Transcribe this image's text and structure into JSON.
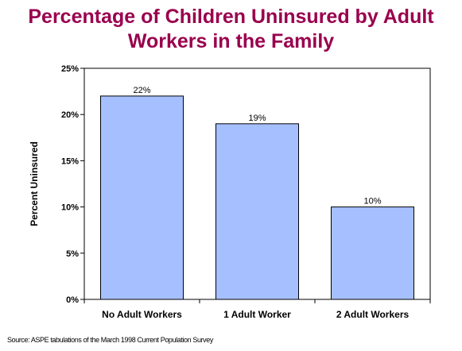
{
  "title_lines": [
    "Percentage of Children Uninsured by Adult",
    "Workers in the Family"
  ],
  "source": "Source: ASPE tabulations of the March 1998 Current Population Survey",
  "colors": {
    "title": "#99004d",
    "bar_fill": "#a6c0ff",
    "bar_stroke": "#000000"
  },
  "chart_data": {
    "type": "bar",
    "title": "Percentage of Children Uninsured by Adult Workers in the Family",
    "categories": [
      "No Adult Workers",
      "1 Adult Worker",
      "2 Adult Workers"
    ],
    "values": [
      22,
      19,
      10
    ],
    "data_labels": [
      "22%",
      "19%",
      "10%"
    ],
    "xlabel": "",
    "ylabel": "Percent Uninsured",
    "ylim": [
      0,
      25
    ],
    "yticks": [
      0,
      5,
      10,
      15,
      20,
      25
    ],
    "ytick_labels": [
      "0%",
      "5%",
      "10%",
      "15%",
      "20%",
      "25%"
    ],
    "grid": false,
    "legend": "none"
  }
}
